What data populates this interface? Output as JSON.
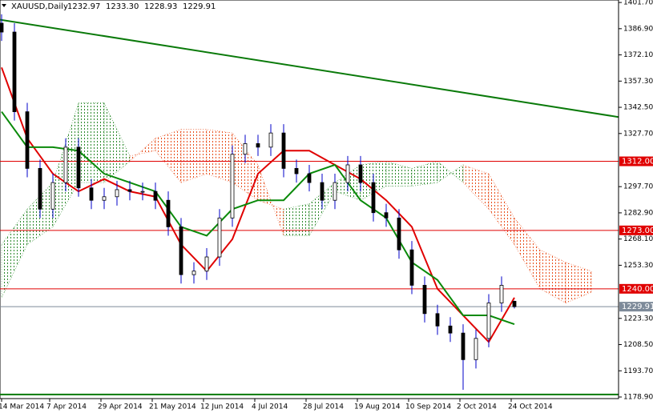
{
  "chart_data": {
    "type": "candlestick",
    "title": "XAUUSD,Daily",
    "header_values": [
      "1232.97",
      "1233.30",
      "1228.93",
      "1229.91"
    ],
    "xlim": [
      -0.5,
      192.5
    ],
    "ylim": [
      1178.0,
      1403.1
    ],
    "yticks": [
      {
        "value": 1401.7,
        "label": "1401.70"
      },
      {
        "value": 1386.9,
        "label": "1386.90"
      },
      {
        "value": 1372.1,
        "label": "1372.10"
      },
      {
        "value": 1357.3,
        "label": "1357.30"
      },
      {
        "value": 1342.5,
        "label": "1342.50"
      },
      {
        "value": 1327.7,
        "label": "1327.70"
      },
      {
        "value": 1297.7,
        "label": "1297.70"
      },
      {
        "value": 1282.9,
        "label": "1282.90"
      },
      {
        "value": 1268.1,
        "label": "1268.10"
      },
      {
        "value": 1253.3,
        "label": "1253.30"
      },
      {
        "value": 1223.3,
        "label": "1223.30"
      },
      {
        "value": 1208.5,
        "label": "1208.50"
      },
      {
        "value": 1193.7,
        "label": "1193.70"
      },
      {
        "value": 1178.9,
        "label": "1178.90"
      }
    ],
    "xticks": [
      {
        "value": 0,
        "label": "14 Mar 2014"
      },
      {
        "value": 15,
        "label": "7 Apr 2014"
      },
      {
        "value": 31,
        "label": "29 Apr 2014"
      },
      {
        "value": 47,
        "label": "21 May 2014"
      },
      {
        "value": 63,
        "label": "12 Jun 2014"
      },
      {
        "value": 79,
        "label": "4 Jul 2014"
      },
      {
        "value": 95,
        "label": "28 Jul 2014"
      },
      {
        "value": 111,
        "label": "19 Aug 2014"
      },
      {
        "value": 127,
        "label": "10 Sep 2014"
      },
      {
        "value": 143,
        "label": "2 Oct 2014"
      },
      {
        "value": 159,
        "label": "24 Oct 2014"
      }
    ],
    "candles": {
      "x": [
        0,
        4,
        8,
        12,
        16,
        20,
        24,
        28,
        32,
        36,
        40,
        44,
        48,
        52,
        56,
        60,
        64,
        68,
        72,
        76,
        80,
        84,
        88,
        92,
        96,
        100,
        104,
        108,
        112,
        116,
        120,
        124,
        128,
        132,
        136,
        140,
        144,
        148,
        152,
        156,
        160
      ],
      "open": [
        1390,
        1385,
        1340,
        1308,
        1285,
        1300,
        1320,
        1297,
        1290,
        1292,
        1296,
        1295,
        1295,
        1290,
        1275,
        1248,
        1250,
        1258,
        1280,
        1316,
        1322,
        1320,
        1328,
        1308,
        1305,
        1300,
        1290,
        1300,
        1310,
        1300,
        1283,
        1280,
        1262,
        1242,
        1226,
        1219,
        1215,
        1200,
        1212,
        1232,
        1232.97
      ],
      "high": [
        1395,
        1390,
        1345,
        1313,
        1305,
        1325,
        1325,
        1302,
        1297,
        1301,
        1301,
        1300,
        1300,
        1295,
        1280,
        1255,
        1263,
        1285,
        1321,
        1327,
        1327,
        1333,
        1333,
        1313,
        1310,
        1305,
        1305,
        1315,
        1315,
        1305,
        1288,
        1285,
        1267,
        1247,
        1231,
        1224,
        1220,
        1217,
        1237,
        1247,
        1233.3
      ],
      "low": [
        1380,
        1335,
        1303,
        1280,
        1280,
        1295,
        1292,
        1285,
        1285,
        1287,
        1290,
        1290,
        1285,
        1270,
        1243,
        1243,
        1245,
        1253,
        1275,
        1311,
        1315,
        1315,
        1303,
        1300,
        1295,
        1285,
        1285,
        1295,
        1295,
        1278,
        1275,
        1257,
        1237,
        1221,
        1214,
        1210,
        1183,
        1195,
        1207,
        1227,
        1228.93
      ],
      "close": [
        1385,
        1340,
        1308,
        1285,
        1300,
        1320,
        1297,
        1290,
        1292,
        1296,
        1295,
        1295,
        1290,
        1275,
        1248,
        1250,
        1258,
        1280,
        1316,
        1322,
        1320,
        1328,
        1308,
        1305,
        1300,
        1290,
        1300,
        1310,
        1300,
        1283,
        1280,
        1262,
        1242,
        1226,
        1219,
        1215,
        1200,
        1212,
        1232,
        1242,
        1229.91
      ]
    },
    "cloud": {
      "x": [
        0,
        8,
        16,
        24,
        32,
        40,
        48,
        56,
        64,
        72,
        80,
        88,
        96,
        104,
        112,
        120,
        128,
        136,
        144,
        152,
        160,
        168,
        176,
        184
      ],
      "span_a": [
        1265,
        1285,
        1300,
        1345,
        1345,
        1315,
        1318,
        1300,
        1305,
        1300,
        1290,
        1285,
        1288,
        1300,
        1310,
        1312,
        1308,
        1312,
        1300,
        1285,
        1265,
        1240,
        1232,
        1238
      ],
      "span_b": [
        1235,
        1265,
        1275,
        1300,
        1300,
        1312,
        1325,
        1330,
        1330,
        1328,
        1310,
        1270,
        1270,
        1295,
        1290,
        1298,
        1298,
        1300,
        1310,
        1305,
        1280,
        1262,
        1255,
        1250
      ],
      "up_color": "#2e8b2e",
      "down_color": "#e8501e"
    },
    "series": [
      {
        "color": "#e00000",
        "x": [
          0,
          8,
          16,
          24,
          32,
          40,
          48,
          56,
          64,
          72,
          80,
          88,
          96,
          104,
          112,
          120,
          128,
          136,
          144,
          152,
          160
        ],
        "values": [
          1365,
          1325,
          1305,
          1295,
          1302,
          1295,
          1292,
          1265,
          1250,
          1268,
          1305,
          1318,
          1318,
          1310,
          1302,
          1290,
          1275,
          1240,
          1225,
          1210,
          1235
        ]
      },
      {
        "color": "#0a8a0a",
        "x": [
          0,
          8,
          16,
          24,
          32,
          40,
          48,
          56,
          64,
          72,
          80,
          88,
          96,
          104,
          112,
          120,
          128,
          136,
          144,
          152,
          160
        ],
        "values": [
          1340,
          1320,
          1320,
          1318,
          1305,
          1300,
          1295,
          1275,
          1270,
          1285,
          1290,
          1290,
          1305,
          1310,
          1290,
          1280,
          1255,
          1245,
          1225,
          1225,
          1220
        ]
      }
    ],
    "trendlines": [
      {
        "color": "#0a7a0a",
        "values": [
          1392,
          1337
        ]
      },
      {
        "color": "#0a7a0a",
        "values": [
          1180.3,
          1180.3
        ]
      }
    ],
    "levels": [
      {
        "value": 1312,
        "label": "1312.00",
        "color": "#e00000"
      },
      {
        "value": 1273,
        "label": "1273.00",
        "color": "#e00000"
      },
      {
        "value": 1240,
        "label": "1240.00",
        "color": "#e00000"
      },
      {
        "value": 1229.91,
        "label": "1229.91",
        "color": "#7d8a99"
      }
    ]
  }
}
